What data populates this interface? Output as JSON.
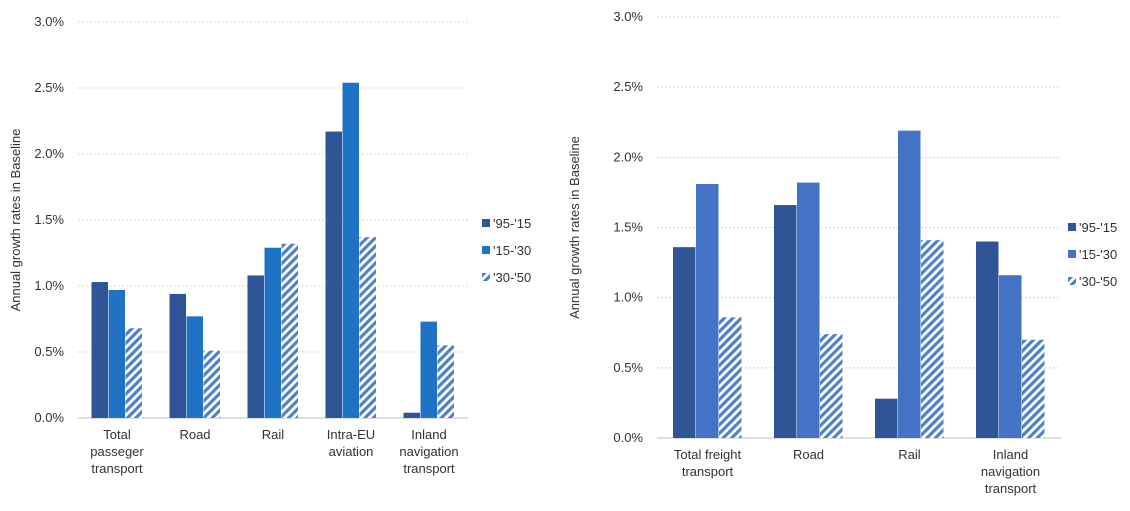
{
  "chart_data": [
    {
      "type": "bar",
      "title": "",
      "ylabel": "Annual growth rates in Baseline",
      "xlabel": "",
      "ylim": [
        0,
        3.0
      ],
      "yticks": [
        "0.0%",
        "0.5%",
        "1.0%",
        "1.5%",
        "2.0%",
        "2.5%",
        "3.0%"
      ],
      "grid": "horizontal dotted",
      "legend_position": "right",
      "categories": [
        [
          "Total",
          "passeger",
          "transport"
        ],
        [
          "Road"
        ],
        [
          "Rail"
        ],
        [
          "Intra-EU",
          "aviation"
        ],
        [
          "Inland",
          "navigation",
          "transport"
        ]
      ],
      "series": [
        {
          "name": "'95-'15",
          "color": "#2f5597",
          "pattern": "solid",
          "values": [
            1.03,
            0.94,
            1.08,
            2.17,
            0.04
          ]
        },
        {
          "name": "'15-'30",
          "color": "#1f72c4",
          "pattern": "solid",
          "values": [
            0.97,
            0.77,
            1.29,
            2.54,
            0.73
          ]
        },
        {
          "name": "'30-'50",
          "color": "#4f81c7",
          "pattern": "hatched",
          "values": [
            0.68,
            0.51,
            1.32,
            1.37,
            0.55
          ]
        }
      ]
    },
    {
      "type": "bar",
      "title": "",
      "ylabel": "Annual growth rates in Baseline",
      "xlabel": "",
      "ylim": [
        0,
        3.0
      ],
      "yticks": [
        "0.0%",
        "0.5%",
        "1.0%",
        "1.5%",
        "2.0%",
        "2.5%",
        "3.0%"
      ],
      "grid": "horizontal dotted",
      "legend_position": "right",
      "categories": [
        [
          "Total freight",
          "transport"
        ],
        [
          "Road"
        ],
        [
          "Rail"
        ],
        [
          "Inland",
          "navigation",
          "transport"
        ]
      ],
      "series": [
        {
          "name": "'95-'15",
          "color": "#2f5597",
          "pattern": "solid",
          "values": [
            1.36,
            1.66,
            0.28,
            1.4
          ]
        },
        {
          "name": "'15-'30",
          "color": "#4472c4",
          "pattern": "solid",
          "values": [
            1.81,
            1.82,
            2.19,
            1.16
          ]
        },
        {
          "name": "'30-'50",
          "color": "#4f81c7",
          "pattern": "hatched",
          "values": [
            0.86,
            0.74,
            1.41,
            0.7
          ]
        }
      ]
    }
  ]
}
